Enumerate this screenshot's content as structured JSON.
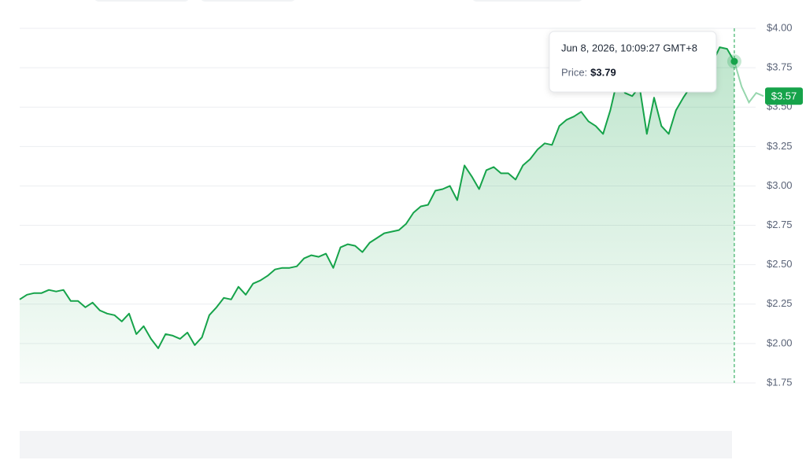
{
  "chart_data": {
    "type": "area",
    "values": [
      2.28,
      2.31,
      2.32,
      2.32,
      2.34,
      2.33,
      2.34,
      2.27,
      2.27,
      2.23,
      2.26,
      2.21,
      2.19,
      2.18,
      2.14,
      2.19,
      2.06,
      2.11,
      2.03,
      1.97,
      2.06,
      2.05,
      2.03,
      2.07,
      1.99,
      2.04,
      2.18,
      2.23,
      2.29,
      2.28,
      2.36,
      2.31,
      2.38,
      2.4,
      2.43,
      2.47,
      2.48,
      2.48,
      2.49,
      2.54,
      2.56,
      2.55,
      2.57,
      2.48,
      2.61,
      2.63,
      2.62,
      2.58,
      2.64,
      2.67,
      2.7,
      2.71,
      2.72,
      2.76,
      2.83,
      2.87,
      2.88,
      2.97,
      2.98,
      3.0,
      2.91,
      3.13,
      3.06,
      2.98,
      3.1,
      3.12,
      3.08,
      3.08,
      3.04,
      3.13,
      3.17,
      3.23,
      3.27,
      3.26,
      3.38,
      3.42,
      3.44,
      3.47,
      3.41,
      3.38,
      3.33,
      3.48,
      3.68,
      3.59,
      3.57,
      3.63,
      3.33,
      3.56,
      3.38,
      3.33,
      3.48,
      3.56,
      3.63,
      3.68,
      3.66,
      3.78,
      3.88,
      3.87,
      3.79,
      3.63,
      3.53,
      3.59,
      3.57
    ],
    "color": "#16a34a",
    "ylim": [
      1.75,
      4.0
    ],
    "yticks": [
      {
        "value": 1.75,
        "label": "$1.75"
      },
      {
        "value": 2.0,
        "label": "$2.00"
      },
      {
        "value": 2.25,
        "label": "$2.25"
      },
      {
        "value": 2.5,
        "label": "$2.50"
      },
      {
        "value": 2.75,
        "label": "$2.75"
      },
      {
        "value": 3.0,
        "label": "$3.00"
      },
      {
        "value": 3.25,
        "label": "$3.25"
      },
      {
        "value": 3.5,
        "label": "$3.50"
      },
      {
        "value": 3.75,
        "label": "$3.75"
      },
      {
        "value": 4.0,
        "label": "$4.00"
      }
    ],
    "grid": true,
    "tooltip": {
      "date": "Jun 8, 2026, 10:09:27 GMT+8",
      "label": "Price:",
      "value": 3.79,
      "value_label": "$3.79"
    },
    "last_price": {
      "value": 3.57,
      "label": "$3.57"
    }
  }
}
